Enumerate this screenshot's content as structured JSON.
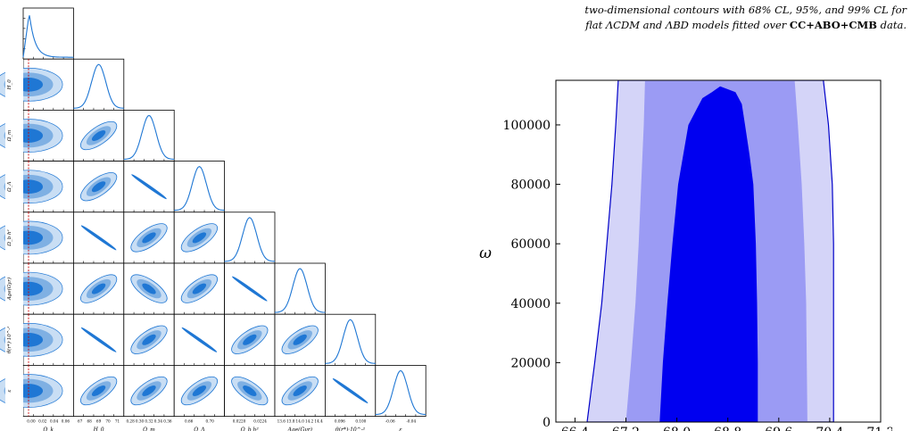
{
  "caption": {
    "line1": "two-dimensional contours with 68% CL, 95%, and 99% CL for",
    "line2_a": "flat ",
    "line2_model1": "ΛCDM",
    "line2_and": " and ",
    "line2_model2": "ΛBD",
    "line2_b": " models fitted over ",
    "line2_data": "CC+ABO+CMB",
    "line2_c": " data."
  },
  "corner_plot": {
    "params": [
      "Ω_k",
      "H_0",
      "Ω_m",
      "Ω_Λ",
      "Ω_b h²",
      "Age(Gyr)",
      "θ(r*)·10^-²",
      "ε"
    ],
    "x_labels": [
      "Ω_k",
      "H_0",
      "Ω_m",
      "Ω_Λ",
      "Ω_b h²",
      "Age(Gyr)",
      "θ(r*)·10^-²",
      "ε"
    ],
    "y_labels": [
      "H_0",
      "Ω_m",
      "Ω_Λ",
      "Ω_b h²",
      "Age(Gyr)",
      "θ(r*)·10^-²",
      "ε"
    ],
    "x_ticks": [
      [
        "0.00",
        "0.02",
        "0.04",
        "0.06"
      ],
      [
        "67",
        "68",
        "69",
        "70",
        "71"
      ],
      [
        "0.28",
        "0.30",
        "0.32",
        "0.34",
        "0.36"
      ],
      [
        "0.66",
        "0.70"
      ],
      [
        "0.0220",
        "0.0224"
      ],
      [
        "13.6",
        "13.8",
        "14.0",
        "14.2",
        "14.4"
      ],
      [
        "0.096",
        "0.100"
      ],
      [
        "-0.06",
        "-0.04"
      ]
    ],
    "colors": {
      "dark": "#1f77d4",
      "mid": "#7fb0e3",
      "light": "#c9def4",
      "line": "#1f77d4",
      "ref": "#cc0000"
    }
  },
  "chart_data": {
    "type": "area",
    "title": "",
    "xlabel": "",
    "ylabel": "ω",
    "ylim": [
      0,
      115000
    ],
    "yticks": [
      "0",
      "20000",
      "40000",
      "60000",
      "80000",
      "100000"
    ],
    "xticks": [
      "66.4",
      "67.2",
      "68.0",
      "68.8",
      "69.6",
      "70.4",
      "71.2"
    ],
    "xlim": [
      66.1,
      71.2
    ],
    "series": [
      {
        "level": "99%",
        "color": "#d4d4f8",
        "left": [
          [
            66.59,
            0
          ],
          [
            66.71,
            20000
          ],
          [
            66.82,
            40000
          ],
          [
            66.9,
            60000
          ],
          [
            66.98,
            80000
          ],
          [
            67.04,
            100000
          ],
          [
            67.08,
            115000
          ]
        ],
        "right": [
          [
            70.3,
            115000
          ],
          [
            70.38,
            100000
          ],
          [
            70.44,
            80000
          ],
          [
            70.46,
            60000
          ],
          [
            70.46,
            40000
          ],
          [
            70.46,
            20000
          ],
          [
            70.46,
            0
          ]
        ]
      },
      {
        "level": "95%",
        "color": "#9b9bf4",
        "left": [
          [
            67.2,
            0
          ],
          [
            67.28,
            20000
          ],
          [
            67.35,
            40000
          ],
          [
            67.4,
            60000
          ],
          [
            67.44,
            80000
          ],
          [
            67.48,
            100000
          ],
          [
            67.5,
            115000
          ]
        ],
        "right": [
          [
            69.85,
            115000
          ],
          [
            69.9,
            100000
          ],
          [
            69.96,
            80000
          ],
          [
            70.0,
            60000
          ],
          [
            70.03,
            40000
          ],
          [
            70.04,
            20000
          ],
          [
            70.05,
            0
          ]
        ]
      },
      {
        "level": "68%",
        "color": "#0000f0",
        "left": [
          [
            67.73,
            0
          ],
          [
            67.78,
            20000
          ],
          [
            67.85,
            40000
          ],
          [
            67.93,
            60000
          ],
          [
            68.02,
            80000
          ],
          [
            68.18,
            100000
          ],
          [
            68.4,
            109000
          ],
          [
            68.55,
            111000
          ],
          [
            68.68,
            113000
          ]
        ],
        "right": [
          [
            68.8,
            112000
          ],
          [
            68.92,
            111000
          ],
          [
            69.02,
            107000
          ],
          [
            69.07,
            100000
          ],
          [
            69.14,
            90000
          ],
          [
            69.2,
            80000
          ],
          [
            69.24,
            60000
          ],
          [
            69.26,
            40000
          ],
          [
            69.27,
            20000
          ],
          [
            69.27,
            0
          ]
        ]
      }
    ]
  }
}
